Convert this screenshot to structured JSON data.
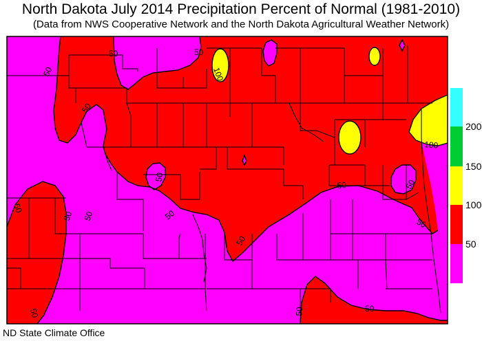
{
  "title": "North Dakota July 2014 Precipitation Percent of Normal (1981-2010)",
  "subtitle": "(Data from NWS Cooperative Network and the North Dakota Agricultural Weather Network)",
  "credit": "ND State Climate Office",
  "colors": {
    "below_50": "#ff00ff",
    "50_100": "#ff0000",
    "100_150": "#ffff00",
    "150_200": "#00cc33",
    "above_200": "#33ffff",
    "county_lines": "#000000"
  },
  "legend": {
    "bins": [
      {
        "range": "<50",
        "color": "#ff00ff"
      },
      {
        "range": "50-100",
        "color": "#ff0000"
      },
      {
        "range": "100-150",
        "color": "#ffff00"
      },
      {
        "range": "150-200",
        "color": "#00cc33"
      },
      {
        "range": ">200",
        "color": "#33ffff"
      }
    ],
    "tick_labels": [
      "200",
      "150",
      "100",
      "50"
    ]
  },
  "contour_labels": {
    "c1": "50",
    "c2": "50",
    "c3": "100",
    "c4": "50",
    "c5": "50",
    "c6": "50",
    "c7": "50",
    "c8": "50",
    "c9": "50",
    "c10": "50",
    "c11": "100",
    "c12": "50",
    "c13": "50",
    "c14": "50",
    "c15": "50",
    "c16": "50",
    "c17": "50",
    "c18": "50"
  }
}
